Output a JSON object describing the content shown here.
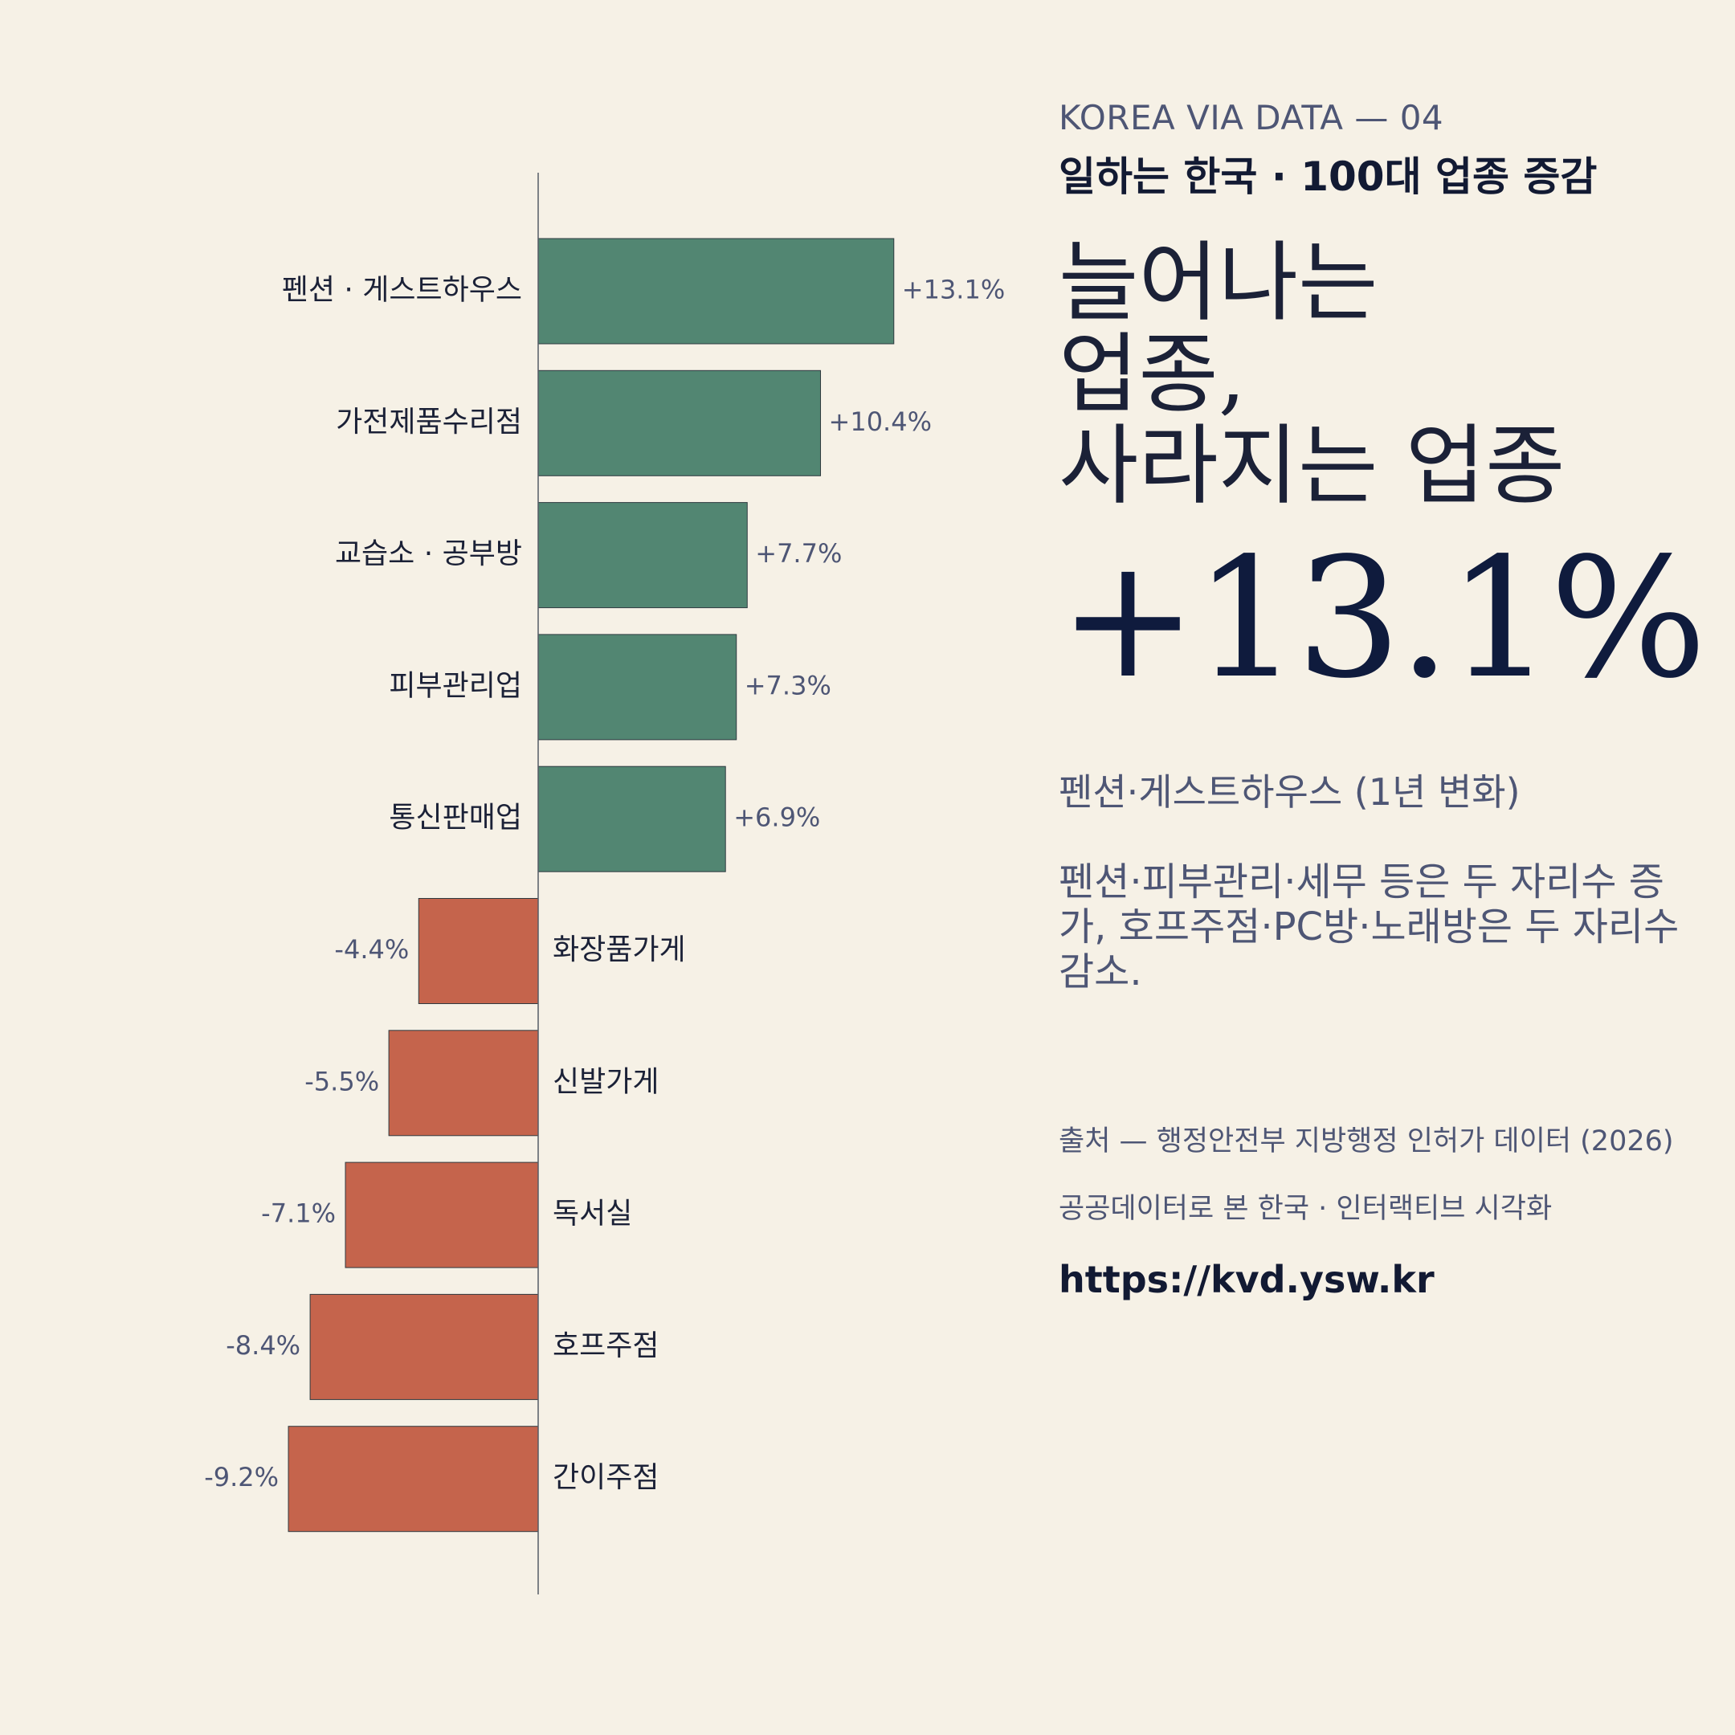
{
  "kicker": "KOREA VIA DATA — 04",
  "series_title": "일하는 한국 · 100대 업종 증감",
  "headline": [
    "늘어나는",
    "업종,",
    "사라지는 업종"
  ],
  "highlight": {
    "value": "+13.1%",
    "caption": "펜션·게스트하우스 (1년 변화)"
  },
  "description": "펜션·피부관리·세무 등은 두 자리수 증가, 호프주점·PC방·노래방은 두 자리수 감소.",
  "source": "출처 — 행정안전부 지방행정 인허가 데이터 (2026)",
  "project": "공공데이터로 본 한국 · 인터랙티브 시각화",
  "url": "https://kvd.ysw.kr",
  "colors": {
    "background": "#f6f1e6",
    "positive": "#528672",
    "negative": "#c5644c",
    "text_dark": "#1b2137",
    "text_muted": "#4e5675"
  },
  "chart_data": {
    "type": "bar",
    "orientation": "horizontal-diverging",
    "unit": "%",
    "xlim": [
      -9.2,
      13.1
    ],
    "grid": false,
    "categories": [
      "펜션 · 게스트하우스",
      "가전제품수리점",
      "교습소 · 공부방",
      "피부관리업",
      "통신판매업",
      "화장품가게",
      "신발가게",
      "독서실",
      "호프주점",
      "간이주점"
    ],
    "values": [
      13.1,
      10.4,
      7.7,
      7.3,
      6.9,
      -4.4,
      -5.5,
      -7.1,
      -8.4,
      -9.2
    ],
    "value_labels": [
      "+13.1%",
      "+10.4%",
      "+7.7%",
      "+7.3%",
      "+6.9%",
      "-4.4%",
      "-5.5%",
      "-7.1%",
      "-8.4%",
      "-9.2%"
    ]
  }
}
